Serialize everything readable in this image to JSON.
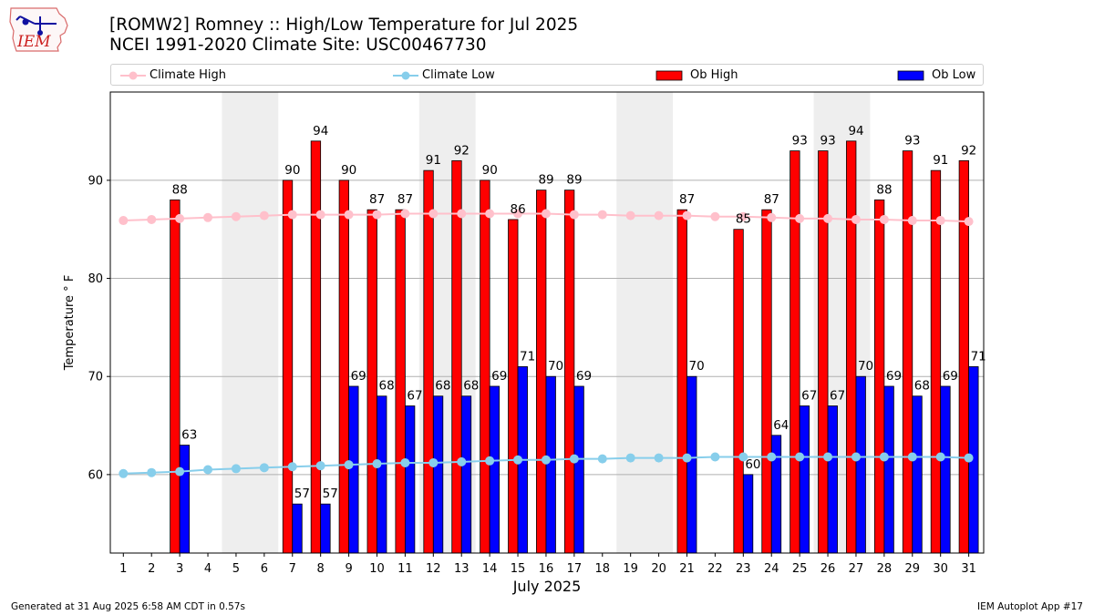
{
  "header": {
    "logo_text": "IEM",
    "title_line1": "[ROMW2] Romney :: High/Low Temperature for Jul 2025",
    "title_line2": "NCEI 1991-2020 Climate Site: USC00467730"
  },
  "footer": {
    "generated": "Generated at 31 Aug 2025 6:58 AM CDT in 0.57s",
    "app": "IEM Autoplot App #17"
  },
  "colors": {
    "climate_high": "#ffc0cb",
    "climate_low": "#87ceeb",
    "ob_high": "#ff0000",
    "ob_low": "#0000ff",
    "weekend_shade": "#eeeeee",
    "grid": "#b0b0b0"
  },
  "chart_data": {
    "type": "bar",
    "title": "[ROMW2] Romney :: High/Low Temperature for Jul 2025",
    "subtitle": "NCEI 1991-2020 Climate Site: USC00467730",
    "xlabel": "July 2025",
    "ylabel": "Temperature ° F",
    "ylim": [
      52,
      99
    ],
    "yticks": [
      60,
      70,
      80,
      90
    ],
    "grid": true,
    "legend_position": "top",
    "categories": [
      "1",
      "2",
      "3",
      "4",
      "5",
      "6",
      "7",
      "8",
      "9",
      "10",
      "11",
      "12",
      "13",
      "14",
      "15",
      "16",
      "17",
      "18",
      "19",
      "20",
      "21",
      "22",
      "23",
      "24",
      "25",
      "26",
      "27",
      "28",
      "29",
      "30",
      "31"
    ],
    "shaded_days": [
      [
        5,
        6
      ],
      [
        12,
        13
      ],
      [
        19,
        20
      ],
      [
        26,
        27
      ]
    ],
    "series": [
      {
        "name": "Climate High",
        "kind": "line",
        "values": [
          85.9,
          86.0,
          86.1,
          86.2,
          86.3,
          86.4,
          86.5,
          86.5,
          86.5,
          86.5,
          86.6,
          86.6,
          86.6,
          86.6,
          86.6,
          86.6,
          86.5,
          86.5,
          86.4,
          86.4,
          86.4,
          86.3,
          86.3,
          86.2,
          86.1,
          86.1,
          86.0,
          86.0,
          85.9,
          85.9,
          85.8
        ]
      },
      {
        "name": "Climate Low",
        "kind": "line",
        "values": [
          60.1,
          60.2,
          60.3,
          60.5,
          60.6,
          60.7,
          60.8,
          60.9,
          61.0,
          61.1,
          61.2,
          61.2,
          61.3,
          61.4,
          61.5,
          61.5,
          61.6,
          61.6,
          61.7,
          61.7,
          61.7,
          61.8,
          61.8,
          61.8,
          61.8,
          61.8,
          61.8,
          61.8,
          61.8,
          61.8,
          61.7
        ]
      },
      {
        "name": "Ob High",
        "kind": "bar",
        "values": [
          null,
          null,
          88,
          null,
          null,
          null,
          90,
          94,
          90,
          87,
          87,
          91,
          92,
          90,
          86,
          89,
          89,
          null,
          null,
          null,
          87,
          null,
          85,
          87,
          93,
          93,
          94,
          88,
          93,
          91,
          92
        ]
      },
      {
        "name": "Ob Low",
        "kind": "bar",
        "values": [
          null,
          null,
          63,
          null,
          null,
          null,
          57,
          57,
          69,
          68,
          67,
          68,
          68,
          69,
          71,
          70,
          69,
          null,
          null,
          null,
          70,
          null,
          60,
          64,
          67,
          67,
          70,
          69,
          68,
          69,
          71
        ]
      }
    ]
  }
}
